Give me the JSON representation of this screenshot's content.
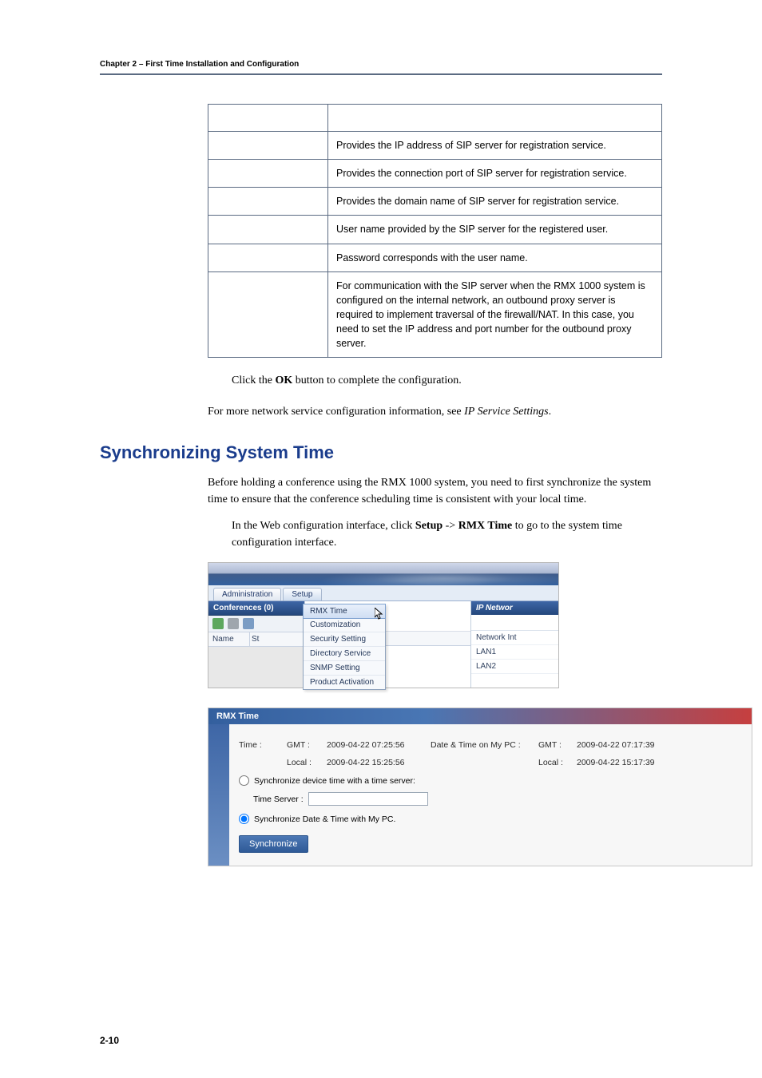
{
  "chapter_header": "Chapter 2 – First Time Installation and Configuration",
  "table_rows": [
    {
      "param": "",
      "desc": "Provides the IP address of SIP server for registration service."
    },
    {
      "param": "",
      "desc": "Provides the connection port of SIP server for registration service."
    },
    {
      "param": "",
      "desc": "Provides the domain name of SIP server for registration service."
    },
    {
      "param": "",
      "desc": "User name provided by the SIP server for the registered user."
    },
    {
      "param": "",
      "desc": "Password corresponds with the user name."
    },
    {
      "param": "",
      "desc": "For communication with the SIP server when the RMX 1000 system is configured on the internal network, an outbound proxy server is required to implement traversal of the firewall/NAT. In this case, you need to set the IP address and port number for the outbound proxy server."
    }
  ],
  "after_table_1a": "Click the ",
  "after_table_1_bold": "OK",
  "after_table_1b": " button to complete the configuration.",
  "after_table_2a": "For more network service configuration information, see ",
  "after_table_2_italic": "IP Service Settings",
  "after_table_2b": ".",
  "section_title": "Synchronizing System Time",
  "sync_para": "Before holding a conference using the RMX 1000 system, you need to first synchronize the system time to ensure that the conference scheduling time is consistent with your local time.",
  "step_a": "In the Web configuration interface, click ",
  "step_b1": "Setup",
  "step_m": " -> ",
  "step_b2": "RMX Time",
  "step_c": " to go to the system time configuration interface.",
  "menubar_tabs": [
    "Administration",
    "Setup"
  ],
  "conf_label": "Conferences (0)",
  "name_col": "Name",
  "st_col": "St",
  "dropdown_items": [
    "RMX Time",
    "Customization",
    "Security Setting",
    "Directory Service",
    "SNMP Setting",
    "Product Activation"
  ],
  "start_time": "Start Time",
  "ip_bar": "IP Networ",
  "right_items": [
    "Network Int",
    "LAN1",
    "LAN2"
  ],
  "rmx": {
    "title": "RMX Time",
    "time_lbl": "Time :",
    "gmt_lbl": "GMT :",
    "local_lbl": "Local :",
    "gmt_val": "2009-04-22 07:25:56",
    "local_val": "2009-04-22 15:25:56",
    "pc_lbl": "Date & Time on My PC :",
    "pc_gmt_lbl": "GMT :",
    "pc_local_lbl": "Local :",
    "pc_gmt_val": "2009-04-22 07:17:39",
    "pc_local_val": "2009-04-22 15:17:39",
    "radio1": "Synchronize device time with a time server:",
    "ts_lbl": "Time Server :",
    "radio2": "Synchronize Date & Time with My PC.",
    "button": "Synchronize"
  },
  "pagenum": "2-10",
  "colors": {
    "accent": "#1a3c8c",
    "hr": "#5b6b82",
    "gradient_bar": "#335f9e",
    "gradient_bar_end": "#c63f3f"
  }
}
